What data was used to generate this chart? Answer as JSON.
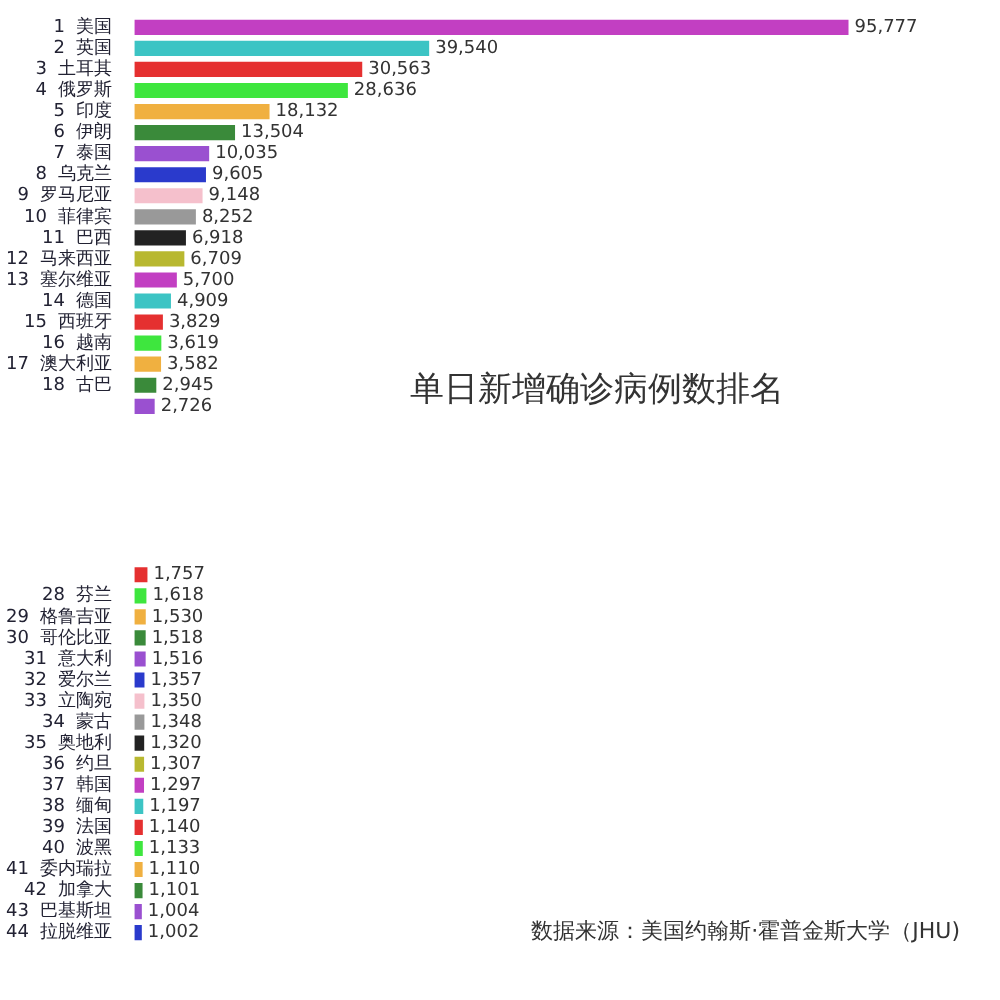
{
  "chart_data": {
    "type": "bar",
    "orientation": "horizontal",
    "title": "单日新增确诊病例数排名",
    "annotations": [
      "数据来源：美国约翰斯·霍普金斯大学（JHU)"
    ],
    "categories": [
      "1  美国",
      "2  英国",
      "3  土耳其",
      "4  俄罗斯",
      "5  印度",
      "6  伊朗",
      "7  泰国",
      "8  乌克兰",
      "9  罗马尼亚",
      "10  菲律宾",
      "11  巴西",
      "12  马来西亚",
      "13  塞尔维亚",
      "14  德国",
      "15  西班牙",
      "16  越南",
      "17  澳大利亚",
      "18  古巴",
      null,
      null,
      null,
      null,
      null,
      null,
      null,
      null,
      null,
      "28  芬兰",
      "29  格鲁吉亚",
      "30  哥伦比亚",
      "31  意大利",
      "32  爱尔兰",
      "33  立陶宛",
      "34  蒙古",
      "35  奥地利",
      "36  约旦",
      "37  韩国",
      "38  缅甸",
      "39  法国",
      "40  波黑",
      "41  委内瑞拉",
      "42  加拿大",
      "43  巴基斯坦",
      "44  拉脱维亚"
    ],
    "values": [
      95777,
      39540,
      30563,
      28636,
      18132,
      13504,
      10035,
      9605,
      9148,
      8252,
      6918,
      6709,
      5700,
      4909,
      3829,
      3619,
      3582,
      2945,
      2726,
      null,
      null,
      null,
      null,
      null,
      null,
      null,
      1757,
      1618,
      1530,
      1518,
      1516,
      1357,
      1350,
      1348,
      1320,
      1307,
      1297,
      1197,
      1140,
      1133,
      1110,
      1101,
      1004,
      1002
    ],
    "value_labels": [
      "95,777",
      "39,540",
      "30,563",
      "28,636",
      "18,132",
      "13,504",
      "10,035",
      "9,605",
      "9,148",
      "8,252",
      "6,918",
      "6,709",
      "5,700",
      "4,909",
      "3,829",
      "3,619",
      "3,582",
      "2,945",
      "2,726",
      null,
      null,
      null,
      null,
      null,
      null,
      null,
      "1,757",
      "1,618",
      "1,530",
      "1,518",
      "1,516",
      "1,357",
      "1,350",
      "1,348",
      "1,320",
      "1,307",
      "1,297",
      "1,197",
      "1,140",
      "1,133",
      "1,110",
      "1,101",
      "1,004",
      "1,002"
    ],
    "colors": [
      "#c23fc2",
      "#3cc4c4",
      "#e53030",
      "#3ee63e",
      "#f0b040",
      "#3a8a3a",
      "#9a50d0",
      "#2a3acc",
      "#f5c0cc",
      "#999999",
      "#222222",
      "#b8b830",
      "#c23fc2",
      "#3cc4c4",
      "#e53030",
      "#3ee63e",
      "#f0b040",
      "#3a8a3a",
      "#9a50d0",
      "#2a3acc",
      "#f5c0cc",
      "#999999",
      "#222222",
      "#b8b830",
      "#c23fc2",
      "#3cc4c4",
      "#e53030",
      "#3ee63e",
      "#f0b040",
      "#3a8a3a",
      "#9a50d0",
      "#2a3acc",
      "#f5c0cc",
      "#999999",
      "#222222",
      "#b8b830",
      "#c23fc2",
      "#3cc4c4",
      "#e53030",
      "#3ee63e",
      "#f0b040",
      "#3a8a3a",
      "#9a50d0",
      "#2a3acc"
    ],
    "tick_labels": "y",
    "grid": false,
    "legend": false
  }
}
